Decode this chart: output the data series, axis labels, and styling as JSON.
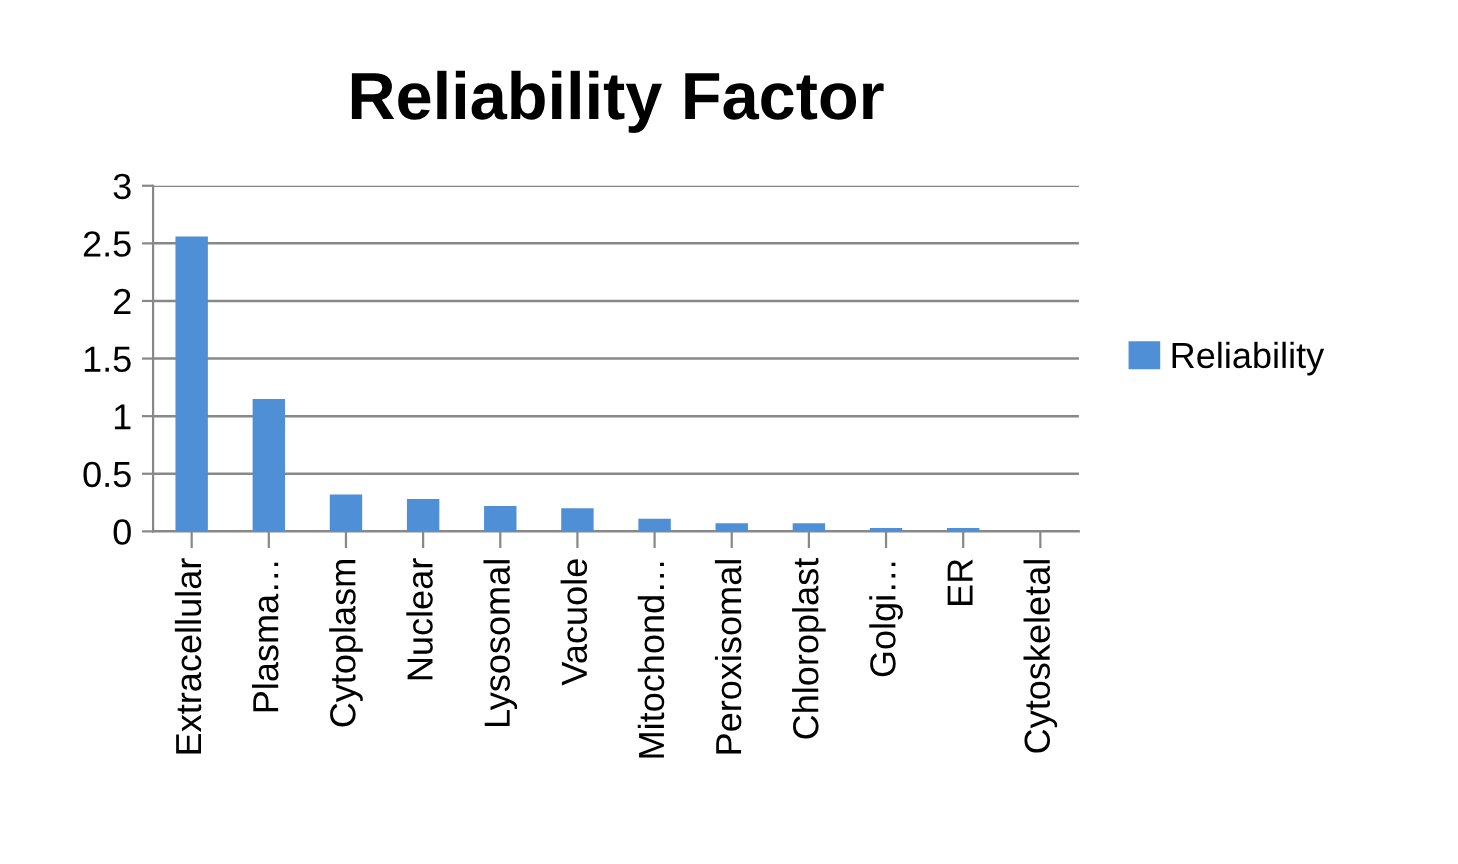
{
  "chart_data": {
    "type": "bar",
    "title": "Reliability Factor",
    "categories": [
      "Extracellular",
      "Plasma…",
      "Cytoplasm",
      "Nuclear",
      "Lysosomal",
      "Vacuole",
      "Mitochond…",
      "Peroxisomal",
      "Chloroplast",
      "Golgi…",
      "ER",
      "Cytoskeletal"
    ],
    "series": [
      {
        "name": "Reliability",
        "color": "#4f8fd6",
        "values": [
          2.56,
          1.15,
          0.32,
          0.28,
          0.22,
          0.2,
          0.11,
          0.07,
          0.07,
          0.03,
          0.03,
          0
        ]
      }
    ],
    "ylim": [
      0,
      3
    ],
    "yticks": [
      0,
      0.5,
      1,
      1.5,
      2,
      2.5,
      3
    ],
    "grid": "y",
    "legend": "right"
  }
}
